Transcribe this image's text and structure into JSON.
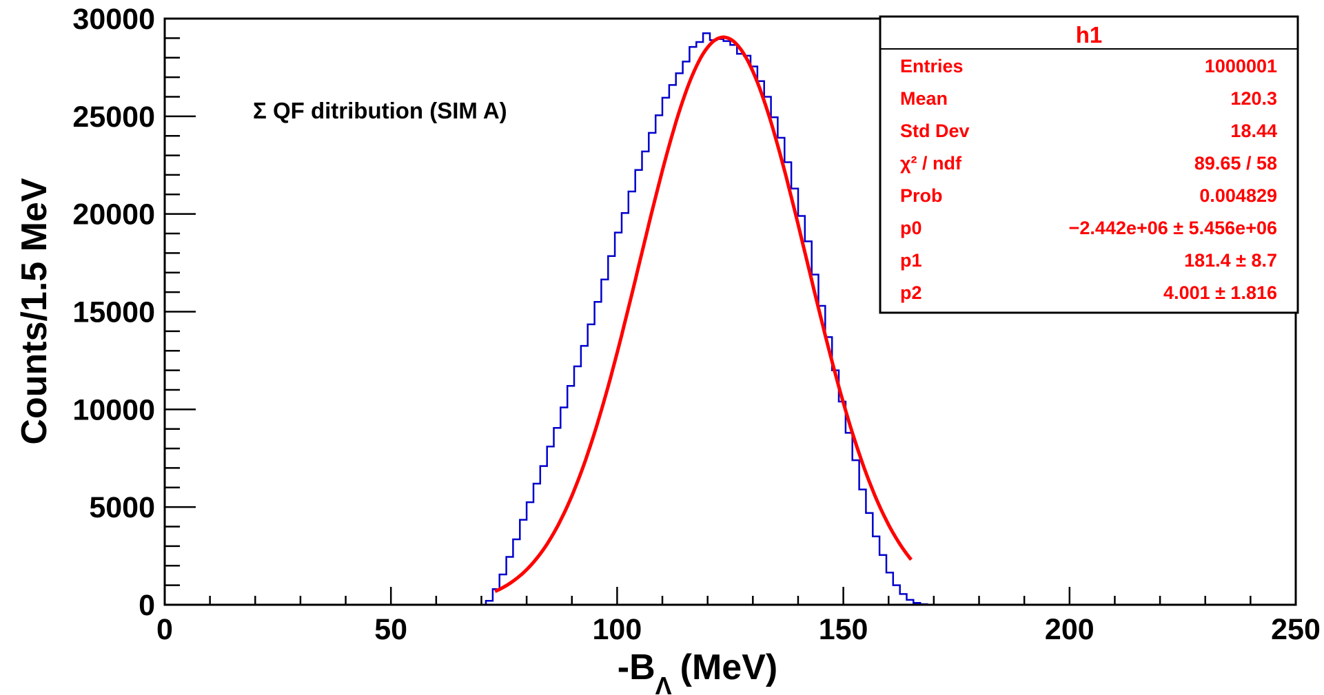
{
  "chart_data": {
    "type": "histogram",
    "histogram_name": "h1",
    "annotation": "Σ QF ditribution (SIM A)",
    "xlabel": "-B",
    "xlabel_subscript": "Λ",
    "xlabel_units": "(MeV)",
    "ylabel": "Counts/1.5 MeV",
    "xlim": [
      0,
      250
    ],
    "ylim": [
      0,
      30000
    ],
    "x_major_ticks": [
      0,
      50,
      100,
      150,
      200,
      250
    ],
    "x_minor_step": 10,
    "y_major_ticks": [
      0,
      5000,
      10000,
      15000,
      20000,
      25000,
      30000
    ],
    "y_minor_step": 1000,
    "grid": false,
    "legend_placement": "top-right",
    "bin_width": 1.5,
    "bin_start": 71,
    "counts": [
      200,
      800,
      1550,
      2450,
      3350,
      4350,
      5250,
      6200,
      7100,
      8100,
      9050,
      10100,
      11200,
      12200,
      13250,
      14350,
      15500,
      16650,
      17850,
      19050,
      20050,
      21150,
      22250,
      23200,
      24150,
      25050,
      25950,
      26600,
      27200,
      27800,
      28550,
      28800,
      29250,
      28900,
      28950,
      28850,
      28650,
      28200,
      28100,
      27550,
      26800,
      26000,
      24950,
      23900,
      22650,
      21300,
      19900,
      18600,
      16900,
      15300,
      13700,
      12000,
      10400,
      8800,
      7400,
      5900,
      4700,
      3500,
      2550,
      1650,
      1000,
      550,
      250,
      100,
      30
    ],
    "fit": {
      "name": "gaussian fit",
      "p0": -2442000,
      "p1": 181.4,
      "p2": 4.001,
      "peak_x": 123.5,
      "peak_y": 29050,
      "sigma": 18.44,
      "range": [
        73,
        165
      ]
    },
    "series_colors": {
      "histogram": "#0000cc",
      "fit": "#ff0000"
    },
    "stats": {
      "title": "h1",
      "rows": [
        {
          "label": "Entries",
          "value": "1000001"
        },
        {
          "label": "Mean",
          "value": "120.3"
        },
        {
          "label": "Std Dev",
          "value": "18.44"
        },
        {
          "label": "χ² / ndf",
          "value": "89.65 / 58"
        },
        {
          "label": "Prob",
          "value": "0.004829"
        },
        {
          "label": "p0",
          "value": "−2.442e+06 ± 5.456e+06"
        },
        {
          "label": "p1",
          "value": "181.4 ± 8.7"
        },
        {
          "label": "p2",
          "value": "4.001 ± 1.816"
        }
      ]
    }
  }
}
